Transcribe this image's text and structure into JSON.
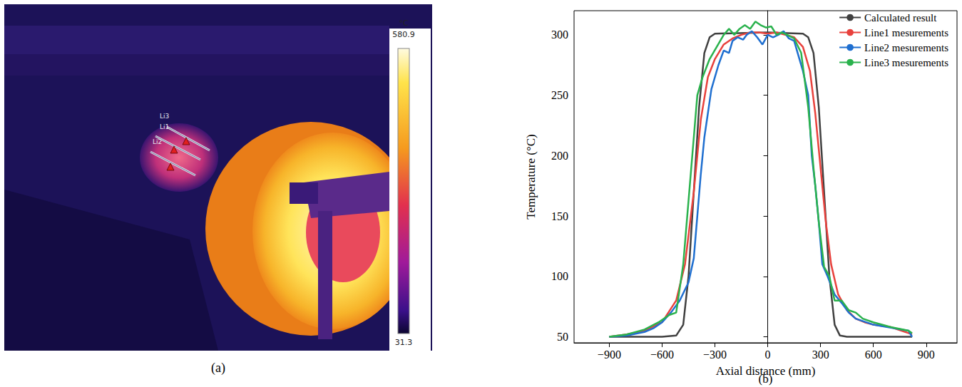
{
  "chart_data": {
    "type": "line",
    "panel_label": "(b)",
    "x_label": "Axial distance (mm)",
    "y_label": "Temperature (°C)",
    "xlim": [
      -1100,
      1075
    ],
    "xticks": [
      {
        "value": -900,
        "label": "−900"
      },
      {
        "value": -600,
        "label": "−600"
      },
      {
        "value": -300,
        "label": "−300"
      },
      0,
      300,
      600,
      900
    ],
    "ylim": [
      45,
      320
    ],
    "yticks": [
      50,
      100,
      150,
      200,
      250,
      300
    ],
    "grid": false,
    "legend": "upper right",
    "series": [
      {
        "name": "Calculated result",
        "color": "#404040",
        "x": [
          -900,
          -600,
          -520,
          -480,
          -450,
          -420,
          -390,
          -360,
          -330,
          -300,
          0,
          200,
          230,
          260,
          290,
          320,
          350,
          380,
          410,
          450,
          820
        ],
        "values": [
          50,
          50,
          51,
          60,
          100,
          170,
          240,
          285,
          298,
          301,
          302,
          301,
          298,
          285,
          240,
          170,
          100,
          60,
          51,
          50,
          50
        ]
      },
      {
        "name": "Line1 mesurements",
        "color": "#e8413c",
        "x": [
          -900,
          -800,
          -700,
          -600,
          -520,
          -470,
          -420,
          -380,
          -340,
          -300,
          -250,
          -200,
          -150,
          -100,
          -50,
          0,
          50,
          100,
          150,
          200,
          240,
          270,
          300,
          330,
          360,
          400,
          450,
          500,
          550,
          600,
          700,
          820
        ],
        "values": [
          50,
          52,
          55,
          62,
          80,
          110,
          170,
          230,
          265,
          280,
          292,
          297,
          300,
          302,
          302,
          301,
          302,
          300,
          298,
          290,
          270,
          235,
          190,
          145,
          110,
          85,
          72,
          65,
          62,
          60,
          58,
          52
        ]
      },
      {
        "name": "Line2 mesurements",
        "color": "#1f6fd0",
        "x": [
          -900,
          -800,
          -700,
          -650,
          -600,
          -550,
          -500,
          -450,
          -420,
          -400,
          -380,
          -360,
          -340,
          -320,
          -300,
          -280,
          -250,
          -220,
          -200,
          -170,
          -140,
          -120,
          -90,
          -60,
          -30,
          0,
          30,
          60,
          90,
          120,
          150,
          180,
          200,
          230,
          250,
          270,
          290,
          310,
          340,
          380,
          420,
          460,
          500,
          600,
          800,
          820
        ],
        "values": [
          50,
          51,
          54,
          57,
          62,
          70,
          80,
          95,
          115,
          150,
          185,
          215,
          235,
          255,
          265,
          275,
          287,
          285,
          295,
          298,
          296,
          300,
          303,
          298,
          292,
          300,
          298,
          300,
          303,
          297,
          295,
          280,
          270,
          250,
          200,
          175,
          145,
          110,
          100,
          85,
          78,
          70,
          65,
          60,
          55,
          50
        ]
      },
      {
        "name": "Line3 mesurements",
        "color": "#2ab24d",
        "x": [
          -900,
          -800,
          -700,
          -620,
          -560,
          -520,
          -480,
          -440,
          -400,
          -370,
          -330,
          -290,
          -250,
          -220,
          -190,
          -160,
          -130,
          -100,
          -70,
          -40,
          -10,
          20,
          50,
          80,
          110,
          150,
          190,
          230,
          260,
          290,
          320,
          350,
          380,
          420,
          460,
          500,
          540,
          600,
          700,
          800,
          820
        ],
        "values": [
          50,
          52,
          56,
          62,
          68,
          70,
          110,
          180,
          250,
          265,
          280,
          290,
          300,
          305,
          300,
          305,
          308,
          305,
          311,
          308,
          306,
          307,
          300,
          302,
          300,
          297,
          285,
          240,
          190,
          145,
          108,
          100,
          80,
          80,
          72,
          70,
          65,
          62,
          58,
          55,
          53
        ]
      }
    ]
  },
  "thermal_image": {
    "panel_label": "(a)",
    "colorbar": {
      "unit": "°C",
      "max": 580.9,
      "min": 31.3
    },
    "line_labels": [
      "Li3",
      "Li1",
      "Li2"
    ]
  }
}
